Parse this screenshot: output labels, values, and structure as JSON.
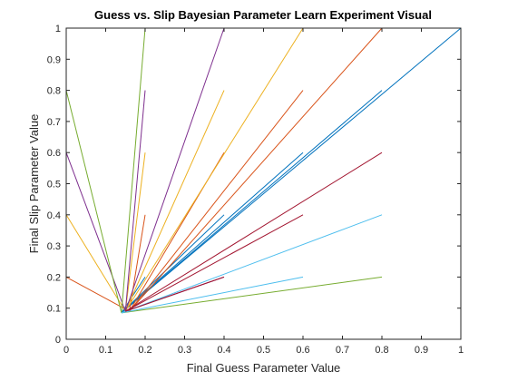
{
  "chart_data": {
    "type": "line",
    "title": "Guess vs. Slip Bayesian Parameter Learn Experiment Visual",
    "xlabel": "Final Guess Parameter Value",
    "ylabel": "Final Slip Parameter Value",
    "xlim": [
      0,
      1
    ],
    "ylim": [
      0,
      1
    ],
    "xticks": [
      "0",
      "0.1",
      "0.2",
      "0.3",
      "0.4",
      "0.5",
      "0.6",
      "0.7",
      "0.8",
      "0.9",
      "1"
    ],
    "yticks": [
      "0",
      "0.1",
      "0.2",
      "0.3",
      "0.4",
      "0.5",
      "0.6",
      "0.7",
      "0.8",
      "0.9",
      "1"
    ],
    "grid": false,
    "legend": "none",
    "series": [
      {
        "color": "#0072bd",
        "x": [
          0.14,
          1.0
        ],
        "y": [
          0.085,
          1.0
        ]
      },
      {
        "color": "#0072bd",
        "x": [
          0.14,
          0.8
        ],
        "y": [
          0.085,
          0.8
        ]
      },
      {
        "color": "#0072bd",
        "x": [
          0.14,
          0.6
        ],
        "y": [
          0.085,
          0.6
        ]
      },
      {
        "color": "#0072bd",
        "x": [
          0.14,
          0.4
        ],
        "y": [
          0.085,
          0.4
        ]
      },
      {
        "color": "#0072bd",
        "x": [
          0.14,
          0.2
        ],
        "y": [
          0.085,
          0.2
        ]
      },
      {
        "color": "#0072bd",
        "x": [
          0,
          0.2
        ],
        "y": [
          0,
          0
        ]
      },
      {
        "color": "#d95319",
        "x": [
          0.16,
          0.8
        ],
        "y": [
          0.09,
          1.0
        ]
      },
      {
        "color": "#d95319",
        "x": [
          0.16,
          0.6
        ],
        "y": [
          0.09,
          0.8
        ]
      },
      {
        "color": "#d95319",
        "x": [
          0.16,
          0.4
        ],
        "y": [
          0.09,
          0.6
        ]
      },
      {
        "color": "#d95319",
        "x": [
          0.16,
          0.2
        ],
        "y": [
          0.09,
          0.4
        ]
      },
      {
        "color": "#d95319",
        "x": [
          0,
          0.16
        ],
        "y": [
          0.2,
          0.09
        ]
      },
      {
        "color": "#edb120",
        "x": [
          0.15,
          0.6
        ],
        "y": [
          0.09,
          1.0
        ]
      },
      {
        "color": "#edb120",
        "x": [
          0.15,
          0.4
        ],
        "y": [
          0.09,
          0.8
        ]
      },
      {
        "color": "#edb120",
        "x": [
          0.15,
          0.2
        ],
        "y": [
          0.09,
          0.6
        ]
      },
      {
        "color": "#edb120",
        "x": [
          0,
          0.15
        ],
        "y": [
          0.4,
          0.09
        ]
      },
      {
        "color": "#7e2f8e",
        "x": [
          0.15,
          0.4
        ],
        "y": [
          0.09,
          1.0
        ]
      },
      {
        "color": "#7e2f8e",
        "x": [
          0.15,
          0.2
        ],
        "y": [
          0.09,
          0.8
        ]
      },
      {
        "color": "#7e2f8e",
        "x": [
          0,
          0.15
        ],
        "y": [
          0.6,
          0.09
        ]
      },
      {
        "color": "#7e2f8e",
        "x": [
          0.15,
          0.4
        ],
        "y": [
          0.09,
          0.2
        ]
      },
      {
        "color": "#7e2f8e",
        "x": [
          0,
          1.0
        ],
        "y": [
          0,
          0
        ]
      },
      {
        "color": "#77ac30",
        "x": [
          0.14,
          0.2
        ],
        "y": [
          0.085,
          1.0
        ]
      },
      {
        "color": "#77ac30",
        "x": [
          0,
          0.14
        ],
        "y": [
          0.8,
          0.085
        ]
      },
      {
        "color": "#77ac30",
        "x": [
          0.14,
          0.8
        ],
        "y": [
          0.085,
          0.2
        ]
      },
      {
        "color": "#4dbeee",
        "x": [
          0,
          0
        ],
        "y": [
          0,
          1.0
        ]
      },
      {
        "color": "#4dbeee",
        "x": [
          0.14,
          0.8
        ],
        "y": [
          0.085,
          0.4
        ]
      },
      {
        "color": "#4dbeee",
        "x": [
          0.14,
          0.6
        ],
        "y": [
          0.085,
          0.2
        ]
      },
      {
        "color": "#a2142f",
        "x": [
          0.15,
          0.8
        ],
        "y": [
          0.09,
          0.6
        ]
      },
      {
        "color": "#a2142f",
        "x": [
          0.15,
          0.6
        ],
        "y": [
          0.09,
          0.4
        ]
      },
      {
        "color": "#a2142f",
        "x": [
          0.15,
          0.4
        ],
        "y": [
          0.09,
          0.2
        ]
      },
      {
        "color": "#e0457b",
        "x": [
          1.0,
          1.0
        ],
        "y": [
          0.09,
          0.8
        ]
      }
    ]
  }
}
